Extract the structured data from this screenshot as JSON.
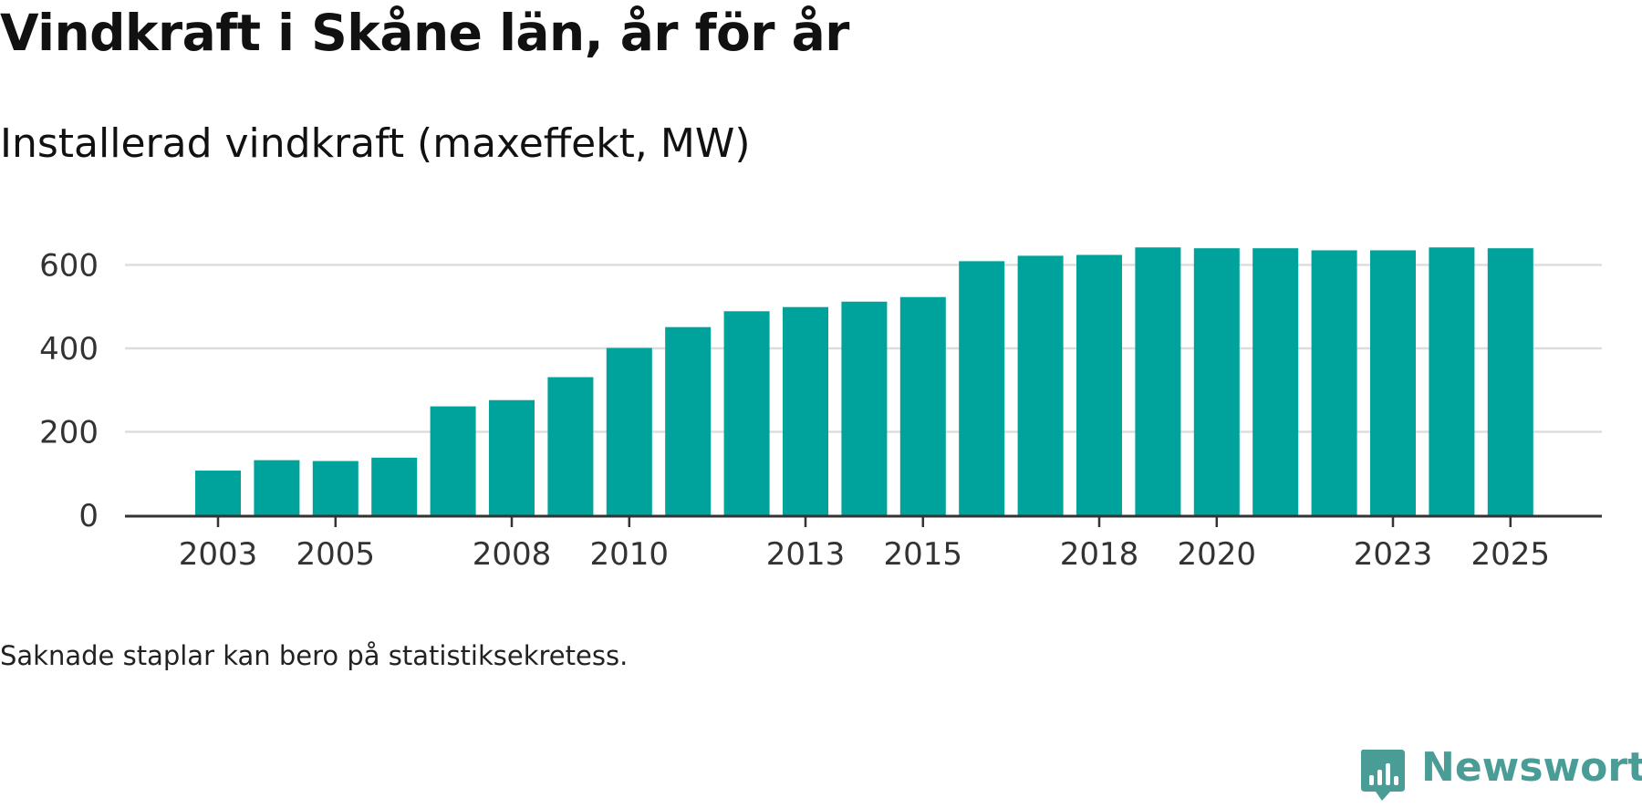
{
  "title": "Vindkraft i Skåne län, år för år",
  "subtitle": "Installerad vindkraft (maxeffekt, MW)",
  "footnote": "Saknade staplar kan bero på statistiksekretess.",
  "brand": {
    "name": "Newsworthy",
    "color": "#4a9d96"
  },
  "colors": {
    "bar": "#00a39b",
    "grid": "#dddddd",
    "axis": "#333333"
  },
  "chart_data": {
    "type": "bar",
    "title": "Vindkraft i Skåne län, år för år",
    "subtitle": "Installerad vindkraft (maxeffekt, MW)",
    "xlabel": "",
    "ylabel": "MW",
    "categories": [
      2003,
      2004,
      2005,
      2006,
      2007,
      2008,
      2009,
      2010,
      2011,
      2012,
      2013,
      2014,
      2015,
      2016,
      2017,
      2018,
      2019,
      2020,
      2021,
      2022,
      2023,
      2024,
      2025
    ],
    "values": [
      107,
      132,
      130,
      138,
      261,
      276,
      331,
      401,
      451,
      489,
      499,
      512,
      523,
      609,
      622,
      624,
      642,
      640,
      640,
      635,
      635,
      642,
      640
    ],
    "xticks": [
      "2003",
      "2005",
      "2008",
      "2010",
      "2013",
      "2015",
      "2018",
      "2020",
      "2023",
      "2025"
    ],
    "yticks": [
      0,
      200,
      400,
      600
    ],
    "ylim": [
      0,
      660
    ],
    "grid": true
  }
}
